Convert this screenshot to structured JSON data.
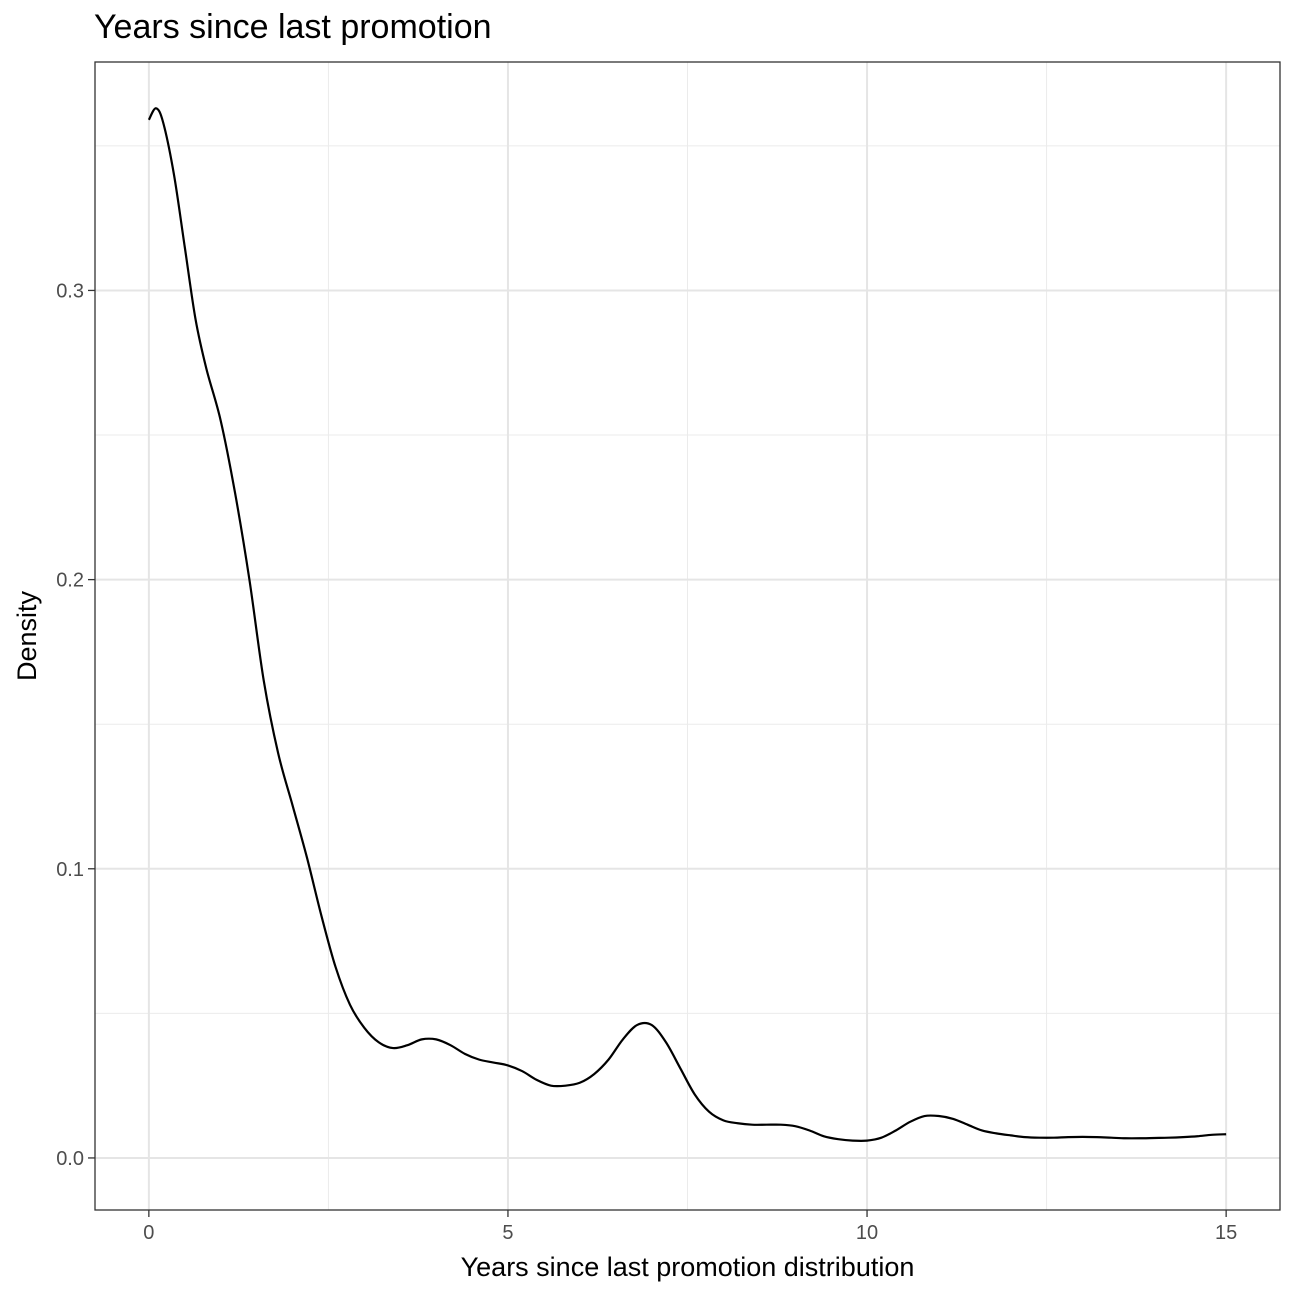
{
  "chart_data": {
    "type": "line",
    "title": "Years since last promotion",
    "xlabel": "Years since last promotion distribution",
    "ylabel": "Density",
    "xlim": [
      -0.75,
      15.75
    ],
    "ylim": [
      -0.018,
      0.379
    ],
    "x_ticks": [
      0,
      5,
      10,
      15
    ],
    "x_tick_labels": [
      "0",
      "5",
      "10",
      "15"
    ],
    "y_ticks": [
      0.0,
      0.1,
      0.2,
      0.3
    ],
    "y_tick_labels": [
      "0.0",
      "0.1",
      "0.2",
      "0.3"
    ],
    "grid": true,
    "legend": "none",
    "series": [
      {
        "color": "#000000",
        "x": [
          0,
          0.1,
          0.2,
          0.35,
          0.5,
          0.65,
          0.8,
          1.0,
          1.2,
          1.4,
          1.6,
          1.8,
          2.0,
          2.2,
          2.4,
          2.6,
          2.8,
          3.0,
          3.2,
          3.4,
          3.6,
          3.8,
          4.0,
          4.2,
          4.4,
          4.6,
          4.8,
          5.0,
          5.2,
          5.4,
          5.6,
          5.8,
          6.0,
          6.2,
          6.4,
          6.6,
          6.8,
          7.0,
          7.2,
          7.4,
          7.6,
          7.8,
          8.0,
          8.2,
          8.4,
          8.6,
          8.8,
          9.0,
          9.2,
          9.4,
          9.6,
          9.8,
          10.0,
          10.2,
          10.4,
          10.6,
          10.8,
          11.0,
          11.2,
          11.4,
          11.6,
          11.8,
          12.0,
          12.2,
          12.4,
          12.6,
          12.8,
          13.0,
          13.2,
          13.4,
          13.6,
          13.8,
          14.0,
          14.2,
          14.4,
          14.6,
          14.8,
          15.0
        ],
        "y": [
          0.359,
          0.363,
          0.358,
          0.34,
          0.315,
          0.29,
          0.273,
          0.255,
          0.23,
          0.2,
          0.165,
          0.14,
          0.122,
          0.104,
          0.084,
          0.066,
          0.053,
          0.045,
          0.04,
          0.038,
          0.039,
          0.041,
          0.041,
          0.039,
          0.036,
          0.034,
          0.033,
          0.032,
          0.03,
          0.027,
          0.025,
          0.025,
          0.026,
          0.029,
          0.034,
          0.041,
          0.046,
          0.046,
          0.04,
          0.031,
          0.022,
          0.016,
          0.013,
          0.012,
          0.0115,
          0.0115,
          0.0115,
          0.011,
          0.0095,
          0.0075,
          0.0065,
          0.006,
          0.006,
          0.007,
          0.0095,
          0.0125,
          0.0145,
          0.0145,
          0.0135,
          0.0115,
          0.0095,
          0.0085,
          0.0078,
          0.0072,
          0.007,
          0.007,
          0.0072,
          0.0073,
          0.0072,
          0.007,
          0.0068,
          0.0068,
          0.0069,
          0.007,
          0.0072,
          0.0075,
          0.008,
          0.0082
        ]
      }
    ]
  }
}
